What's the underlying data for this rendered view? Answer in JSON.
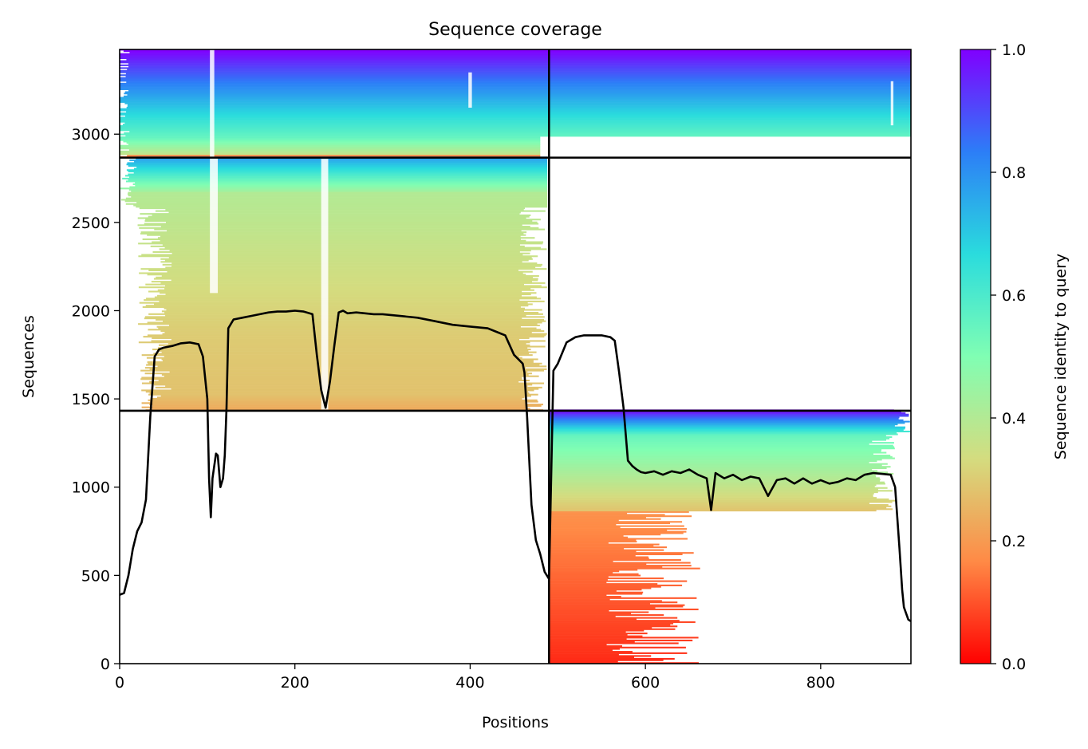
{
  "chart_data": {
    "type": "heatmap",
    "title": "Sequence coverage",
    "xlabel": "Positions",
    "ylabel": "Sequences",
    "xlim": [
      0,
      903
    ],
    "ylim": [
      0,
      3480
    ],
    "xticks": [
      0,
      200,
      400,
      600,
      800
    ],
    "yticks": [
      0,
      500,
      1000,
      1500,
      2000,
      2500,
      3000
    ],
    "colorbar": {
      "label": "Sequence identity to query",
      "colormap": "rainbow_r",
      "range": [
        0,
        1
      ],
      "ticks": [
        "0.0",
        "0.2",
        "0.4",
        "0.6",
        "0.8",
        "1.0"
      ],
      "stops": [
        "#ff0000",
        "#ff8a46",
        "#d4dc7f",
        "#80feb3",
        "#2adcdd",
        "#2c7ef7",
        "#8000ff"
      ]
    },
    "blocks": {
      "domain_boundary_x": 490,
      "row_boundaries_y": [
        1433,
        2867
      ],
      "groups": [
        {
          "rows": [
            2867,
            3480
          ],
          "covers": "both domains",
          "identity_range": [
            0.2,
            1.0
          ]
        },
        {
          "rows": [
            1433,
            2867
          ],
          "covers": "first domain (0-490)",
          "identity_range": [
            0.2,
            0.8
          ]
        },
        {
          "rows": [
            0,
            1433
          ],
          "covers": "second domain (490-903)",
          "identity_range": [
            0.05,
            1.0
          ]
        }
      ]
    },
    "series": [
      {
        "type": "line",
        "color": "#000000",
        "x": [
          0,
          5,
          10,
          15,
          20,
          25,
          30,
          35,
          40,
          45,
          50,
          60,
          70,
          80,
          90,
          95,
          100,
          102,
          104,
          106,
          108,
          110,
          112,
          115,
          118,
          120,
          122,
          124,
          130,
          140,
          150,
          160,
          170,
          180,
          190,
          200,
          210,
          220,
          225,
          230,
          235,
          240,
          245,
          250,
          255,
          260,
          270,
          280,
          290,
          300,
          320,
          340,
          360,
          380,
          400,
          420,
          430,
          440,
          450,
          460,
          462,
          465,
          470,
          475,
          480,
          485,
          490,
          495,
          500,
          510,
          520,
          530,
          540,
          550,
          560,
          565,
          570,
          575,
          580,
          585,
          590,
          595,
          600,
          610,
          620,
          630,
          640,
          650,
          660,
          670,
          675,
          680,
          690,
          700,
          710,
          720,
          730,
          740,
          750,
          760,
          770,
          780,
          790,
          800,
          810,
          820,
          830,
          840,
          850,
          860,
          870,
          880,
          885,
          890,
          893,
          895,
          900,
          903
        ],
        "y": [
          390,
          400,
          500,
          650,
          750,
          800,
          930,
          1400,
          1740,
          1780,
          1790,
          1800,
          1815,
          1820,
          1810,
          1740,
          1500,
          1050,
          830,
          1050,
          1120,
          1190,
          1180,
          1000,
          1050,
          1180,
          1450,
          1900,
          1950,
          1960,
          1970,
          1980,
          1990,
          1995,
          1995,
          2000,
          1995,
          1980,
          1750,
          1550,
          1450,
          1600,
          1800,
          1990,
          2000,
          1985,
          1990,
          1985,
          1980,
          1980,
          1970,
          1960,
          1940,
          1920,
          1910,
          1900,
          1880,
          1860,
          1750,
          1700,
          1650,
          1400,
          900,
          700,
          620,
          520,
          480,
          1660,
          1700,
          1820,
          1850,
          1860,
          1860,
          1860,
          1850,
          1830,
          1650,
          1450,
          1150,
          1120,
          1100,
          1085,
          1080,
          1090,
          1070,
          1090,
          1080,
          1100,
          1070,
          1050,
          870,
          1080,
          1050,
          1070,
          1040,
          1060,
          1050,
          950,
          1040,
          1050,
          1020,
          1050,
          1020,
          1040,
          1020,
          1030,
          1050,
          1040,
          1070,
          1080,
          1075,
          1070,
          1000,
          650,
          420,
          320,
          250,
          240
        ]
      }
    ]
  }
}
